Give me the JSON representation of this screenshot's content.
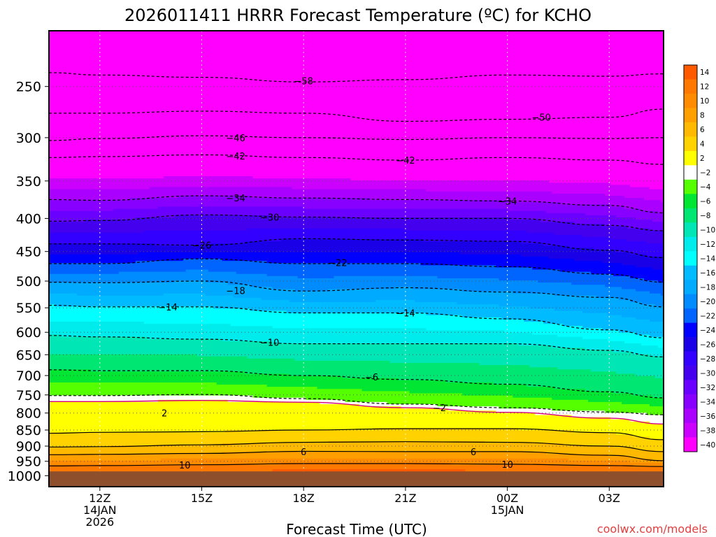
{
  "title": "2026011411 HRRR Forecast Temperature (ºC) for KCHO",
  "xlabel": "Forecast Time (UTC)",
  "credit": "coolwx.com/models",
  "colors": {
    "ground": "#8e4f2c",
    "freezing_line": "#d4007a",
    "credit": "#e04040"
  },
  "chart_data": {
    "type": "heatmap",
    "title": "2026011411 HRRR Forecast Temperature (ºC) for KCHO",
    "xlabel": "Forecast Time (UTC)",
    "ylabel": "",
    "y_scale": "log-pressure",
    "ylim": [
      1040,
      205
    ],
    "xlim": [
      -1.5,
      16.6
    ],
    "x_ticks": [
      {
        "h": 0,
        "label": "12Z",
        "label2": "14JAN",
        "label3": "2026"
      },
      {
        "h": 3,
        "label": "15Z",
        "label2": "",
        "label3": ""
      },
      {
        "h": 6,
        "label": "18Z",
        "label2": "",
        "label3": ""
      },
      {
        "h": 9,
        "label": "21Z",
        "label2": "",
        "label3": ""
      },
      {
        "h": 12,
        "label": "00Z",
        "label2": "15JAN",
        "label3": ""
      },
      {
        "h": 15,
        "label": "03Z",
        "label2": "",
        "label3": ""
      }
    ],
    "y_ticks": [
      250,
      300,
      350,
      400,
      450,
      500,
      550,
      600,
      650,
      700,
      750,
      800,
      850,
      900,
      950,
      1000
    ],
    "ground_top_hpa": 985,
    "grid": true,
    "colorbar": {
      "labels": [
        "14",
        "12",
        "10",
        "8",
        "6",
        "4",
        "2",
        "−2",
        "−4",
        "−6",
        "−8",
        "−10",
        "−12",
        "−14",
        "−16",
        "−18",
        "−20",
        "−22",
        "−24",
        "−26",
        "−28",
        "−30",
        "−32",
        "−34",
        "−36",
        "−38",
        "−40"
      ],
      "colors": [
        "#ff5a00",
        "#ff7800",
        "#ff8c00",
        "#ffa000",
        "#ffb900",
        "#ffd200",
        "#ffff00",
        "#ffffff",
        "#55ff00",
        "#00e632",
        "#00e673",
        "#00e6b4",
        "#00ebeb",
        "#00ffff",
        "#00bbff",
        "#00aaff",
        "#008cff",
        "#0064ff",
        "#0000ff",
        "#1a00e6",
        "#3300ff",
        "#4400ee",
        "#6a00ff",
        "#8800ff",
        "#aa00ff",
        "#cc00ff",
        "#ff00ff"
      ]
    },
    "color_levels": [
      {
        "min": 12,
        "max": 14,
        "color": "#ff5a00"
      },
      {
        "min": 10,
        "max": 12,
        "color": "#ff7800"
      },
      {
        "min": 8,
        "max": 10,
        "color": "#ff8c00"
      },
      {
        "min": 6,
        "max": 8,
        "color": "#ffa000"
      },
      {
        "min": 4,
        "max": 6,
        "color": "#ffb900"
      },
      {
        "min": 2,
        "max": 4,
        "color": "#ffd200"
      },
      {
        "min": 0,
        "max": 2,
        "color": "#ffff00"
      },
      {
        "min": -2,
        "max": 0,
        "color": "#ffffff"
      },
      {
        "min": -4,
        "max": -2,
        "color": "#55ff00"
      },
      {
        "min": -6,
        "max": -4,
        "color": "#00e632"
      },
      {
        "min": -8,
        "max": -6,
        "color": "#00e673"
      },
      {
        "min": -10,
        "max": -8,
        "color": "#00e6b4"
      },
      {
        "min": -12,
        "max": -10,
        "color": "#00ebeb"
      },
      {
        "min": -14,
        "max": -12,
        "color": "#00ffff"
      },
      {
        "min": -16,
        "max": -14,
        "color": "#00bbff"
      },
      {
        "min": -18,
        "max": -16,
        "color": "#00aaff"
      },
      {
        "min": -20,
        "max": -18,
        "color": "#008cff"
      },
      {
        "min": -22,
        "max": -20,
        "color": "#0064ff"
      },
      {
        "min": -24,
        "max": -22,
        "color": "#0000ff"
      },
      {
        "min": -26,
        "max": -24,
        "color": "#1a00e6"
      },
      {
        "min": -28,
        "max": -26,
        "color": "#3300ff"
      },
      {
        "min": -30,
        "max": -28,
        "color": "#4400ee"
      },
      {
        "min": -32,
        "max": -30,
        "color": "#6a00ff"
      },
      {
        "min": -34,
        "max": -32,
        "color": "#8800ff"
      },
      {
        "min": -36,
        "max": -34,
        "color": "#aa00ff"
      },
      {
        "min": -38,
        "max": -36,
        "color": "#cc00ff"
      },
      {
        "min": -40,
        "max": -38,
        "color": "#ff00ff"
      },
      {
        "min": -80,
        "max": -40,
        "color": "#ff00ff"
      }
    ],
    "contours": [
      {
        "t": 10,
        "style": "solid",
        "label": "10",
        "points": [
          [
            -1.5,
            966
          ],
          [
            0,
            965
          ],
          [
            3,
            962
          ],
          [
            6,
            958
          ],
          [
            9,
            958
          ],
          [
            12,
            960
          ],
          [
            15,
            965
          ],
          [
            16.6,
            968
          ]
        ]
      },
      {
        "t": 6,
        "style": "solid",
        "label": "6",
        "points": [
          [
            -1.5,
            928
          ],
          [
            0,
            927
          ],
          [
            3,
            924
          ],
          [
            6,
            917
          ],
          [
            9,
            918
          ],
          [
            12,
            918
          ],
          [
            15,
            930
          ],
          [
            16.6,
            948
          ]
        ]
      },
      {
        "t": 4,
        "style": "solid",
        "label": "",
        "points": [
          [
            -1.5,
            903
          ],
          [
            0,
            902
          ],
          [
            3,
            896
          ],
          [
            6,
            888
          ],
          [
            9,
            886
          ],
          [
            12,
            888
          ],
          [
            15,
            900
          ],
          [
            16.6,
            918
          ]
        ]
      },
      {
        "t": 2,
        "style": "solid",
        "label": "",
        "points": [
          [
            -1.5,
            860
          ],
          [
            0,
            857
          ],
          [
            3,
            855
          ],
          [
            6,
            850
          ],
          [
            9,
            846
          ],
          [
            12,
            846
          ],
          [
            15,
            858
          ],
          [
            16.6,
            880
          ]
        ]
      },
      {
        "t": 0,
        "style": "magenta",
        "label": "",
        "points": [
          [
            -1.5,
            768
          ],
          [
            0,
            768
          ],
          [
            3,
            765
          ],
          [
            6,
            770
          ],
          [
            9,
            785
          ],
          [
            12,
            798
          ],
          [
            15,
            815
          ],
          [
            16.6,
            832
          ]
        ]
      },
      {
        "t": -2,
        "style": "dashed",
        "label": "−2",
        "points": [
          [
            -1.5,
            752
          ],
          [
            0,
            752
          ],
          [
            3,
            749
          ],
          [
            6,
            760
          ],
          [
            9,
            775
          ],
          [
            12,
            785
          ],
          [
            15,
            797
          ],
          [
            16.6,
            805
          ]
        ]
      },
      {
        "t": -6,
        "style": "dashed",
        "label": "−6",
        "points": [
          [
            -1.5,
            686
          ],
          [
            0,
            688
          ],
          [
            3,
            688
          ],
          [
            6,
            700
          ],
          [
            9,
            710
          ],
          [
            12,
            722
          ],
          [
            15,
            742
          ],
          [
            16.6,
            758
          ]
        ]
      },
      {
        "t": -10,
        "style": "dashed",
        "label": "−10",
        "points": [
          [
            -1.5,
            607
          ],
          [
            0,
            610
          ],
          [
            3,
            615
          ],
          [
            6,
            625
          ],
          [
            9,
            625
          ],
          [
            12,
            625
          ],
          [
            15,
            640
          ],
          [
            16.6,
            655
          ]
        ]
      },
      {
        "t": -14,
        "style": "dashed",
        "label": "−14",
        "points": [
          [
            -1.5,
            545
          ],
          [
            0,
            548
          ],
          [
            3,
            548
          ],
          [
            6,
            560
          ],
          [
            9,
            560
          ],
          [
            12,
            572
          ],
          [
            15,
            595
          ],
          [
            16.6,
            612
          ]
        ]
      },
      {
        "t": -18,
        "style": "dashed",
        "label": "−18",
        "points": [
          [
            -1.5,
            502
          ],
          [
            0,
            503
          ],
          [
            3,
            500
          ],
          [
            6,
            518
          ],
          [
            9,
            512
          ],
          [
            12,
            520
          ],
          [
            15,
            530
          ],
          [
            16.6,
            548
          ]
        ]
      },
      {
        "t": -22,
        "style": "dashed",
        "label": "−22",
        "points": [
          [
            -1.5,
            470
          ],
          [
            0,
            470
          ],
          [
            3,
            462
          ],
          [
            6,
            470
          ],
          [
            9,
            470
          ],
          [
            12,
            475
          ],
          [
            15,
            488
          ],
          [
            16.6,
            502
          ]
        ]
      },
      {
        "t": -26,
        "style": "dashed",
        "label": "−26",
        "points": [
          [
            -1.5,
            438
          ],
          [
            0,
            438
          ],
          [
            3,
            440
          ],
          [
            6,
            430
          ],
          [
            9,
            432
          ],
          [
            12,
            434
          ],
          [
            15,
            448
          ],
          [
            16.6,
            460
          ]
        ]
      },
      {
        "t": -30,
        "style": "dashed",
        "label": "−30",
        "points": [
          [
            -1.5,
            404
          ],
          [
            0,
            403
          ],
          [
            3,
            395
          ],
          [
            6,
            398
          ],
          [
            9,
            400
          ],
          [
            12,
            400
          ],
          [
            15,
            410
          ],
          [
            16.6,
            418
          ]
        ]
      },
      {
        "t": -34,
        "style": "dashed",
        "label": "−34",
        "points": [
          [
            -1.5,
            374
          ],
          [
            0,
            375
          ],
          [
            3,
            369
          ],
          [
            6,
            372
          ],
          [
            9,
            374
          ],
          [
            12,
            376
          ],
          [
            15,
            382
          ],
          [
            16.6,
            392
          ]
        ]
      },
      {
        "t": -42,
        "style": "dashed",
        "label": "−42",
        "points": [
          [
            -1.5,
            322
          ],
          [
            0,
            321
          ],
          [
            3,
            319
          ],
          [
            6,
            322
          ],
          [
            9,
            325
          ],
          [
            12,
            322
          ],
          [
            15,
            325
          ],
          [
            16.6,
            330
          ]
        ]
      },
      {
        "t": -46,
        "style": "dashed",
        "label": "−46",
        "points": [
          [
            -1.5,
            303
          ],
          [
            0,
            301
          ],
          [
            3,
            298
          ],
          [
            6,
            300
          ],
          [
            9,
            302
          ],
          [
            12,
            300
          ],
          [
            15,
            301
          ],
          [
            16.6,
            300
          ]
        ]
      },
      {
        "t": -50,
        "style": "dashed",
        "label": "−50",
        "points": [
          [
            -1.5,
            275
          ],
          [
            0,
            275
          ],
          [
            3,
            273
          ],
          [
            6,
            275
          ],
          [
            9,
            283
          ],
          [
            12,
            281
          ],
          [
            15,
            279
          ],
          [
            16.6,
            271
          ]
        ]
      },
      {
        "t": -58,
        "style": "dashed",
        "label": "−58",
        "points": [
          [
            -1.5,
            238
          ],
          [
            0,
            240
          ],
          [
            3,
            242
          ],
          [
            6,
            246
          ],
          [
            9,
            244
          ],
          [
            12,
            240
          ],
          [
            15,
            241
          ],
          [
            16.6,
            239
          ]
        ]
      }
    ],
    "contour_labels": [
      {
        "text": "10",
        "h": 2.5,
        "p": 963
      },
      {
        "text": "10",
        "h": 12.0,
        "p": 960
      },
      {
        "text": "6",
        "h": 6.0,
        "p": 918
      },
      {
        "text": "6",
        "h": 11.0,
        "p": 918
      },
      {
        "text": "2",
        "h": 1.9,
        "p": 800
      },
      {
        "text": "−2",
        "h": 10.0,
        "p": 785
      },
      {
        "text": "−6",
        "h": 8.0,
        "p": 703
      },
      {
        "text": "−10",
        "h": 5.0,
        "p": 622
      },
      {
        "text": "−14",
        "h": 2.0,
        "p": 548
      },
      {
        "text": "−14",
        "h": 9.0,
        "p": 560
      },
      {
        "text": "−18",
        "h": 4.0,
        "p": 517
      },
      {
        "text": "−22",
        "h": 7.0,
        "p": 468
      },
      {
        "text": "−26",
        "h": 3.0,
        "p": 440
      },
      {
        "text": "−30",
        "h": 5.0,
        "p": 398
      },
      {
        "text": "−34",
        "h": 4.0,
        "p": 372
      },
      {
        "text": "−34",
        "h": 12.0,
        "p": 376
      },
      {
        "text": "−42",
        "h": 4.0,
        "p": 320
      },
      {
        "text": "−42",
        "h": 9.0,
        "p": 325
      },
      {
        "text": "−46",
        "h": 4.0,
        "p": 300
      },
      {
        "text": "−50",
        "h": 13.0,
        "p": 279
      },
      {
        "text": "−58",
        "h": 6.0,
        "p": 245
      }
    ]
  }
}
